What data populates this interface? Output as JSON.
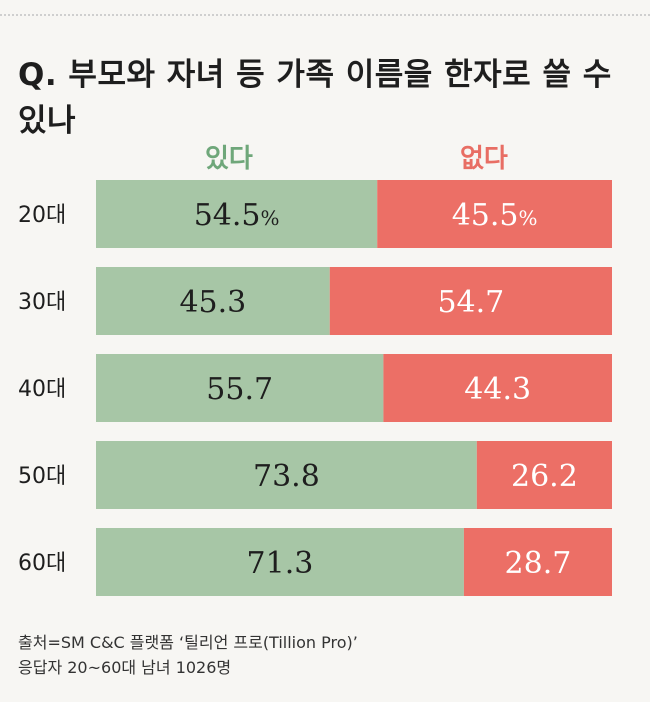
{
  "title": "Q. 부모와 자녀 등 가족 이름을 한자로 쓸 수 있나",
  "source_lines": [
    "출처=SM C&C 플랫폼 ‘틸리언 프로(Tillion Pro)’",
    "응답자 20~60대 남녀 1026명"
  ],
  "colors": {
    "yes": "#a7c6a6",
    "no": "#ec6f66",
    "yes_text": "#6fa77a",
    "no_text": "#e86e64"
  },
  "chart_data": {
    "type": "bar",
    "orientation": "horizontal-stacked-100",
    "categories": [
      "20대",
      "30대",
      "40대",
      "50대",
      "60대"
    ],
    "series": [
      {
        "name": "있다",
        "values": [
          54.5,
          45.3,
          55.7,
          73.8,
          71.3
        ]
      },
      {
        "name": "없다",
        "values": [
          45.5,
          54.7,
          44.3,
          26.2,
          28.7
        ]
      }
    ],
    "value_labels": {
      "있다": [
        "54.5",
        "45.3",
        "55.7",
        "73.8",
        "71.3"
      ],
      "없다": [
        "45.5",
        "54.7",
        "44.3",
        "26.2",
        "28.7"
      ]
    },
    "unit": "%",
    "unit_shown_on_first_row_only": true,
    "xlim": [
      0,
      100
    ],
    "legend": "top"
  }
}
